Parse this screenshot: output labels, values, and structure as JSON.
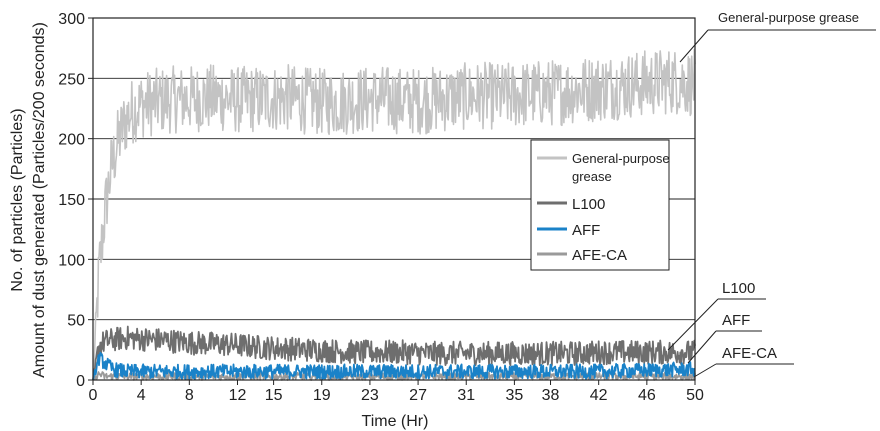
{
  "chart_data": {
    "type": "line",
    "title": "",
    "xlabel": "Time (Hr)",
    "ylabel_line1": "No. of particles (Particles)",
    "ylabel_line2": "Amount of dust generated (Particles/200 seconds)",
    "xlim": [
      0,
      50
    ],
    "ylim": [
      0,
      300
    ],
    "x_ticks": [
      0,
      4,
      8,
      12,
      15,
      19,
      23,
      27,
      31,
      35,
      38,
      42,
      46,
      50
    ],
    "y_ticks": [
      0,
      50,
      100,
      150,
      200,
      250,
      300
    ],
    "grid": "horizontal",
    "legend": {
      "placement": "center-right",
      "entries": [
        {
          "line1": "General-purpose",
          "line2": "grease"
        },
        {
          "line1": "L100"
        },
        {
          "line1": "AFF"
        },
        {
          "line1": "AFE-CA"
        }
      ]
    },
    "annotations": [
      {
        "text": "General-purpose grease",
        "series": "General-purpose grease"
      },
      {
        "text": "L100",
        "series": "L100"
      },
      {
        "text": "AFF",
        "series": "AFF"
      },
      {
        "text": "AFE-CA",
        "series": "AFE-CA"
      }
    ],
    "series": [
      {
        "name": "General-purpose grease",
        "color": "#c3c3c3",
        "x": [
          0,
          0.5,
          1,
          1.5,
          2,
          2.5,
          3,
          3.5,
          4,
          5,
          6,
          8,
          10,
          12,
          14,
          16,
          18,
          20,
          22,
          24,
          26,
          28,
          30,
          32,
          34,
          36,
          38,
          40,
          42,
          44,
          46,
          48,
          50
        ],
        "y": [
          0,
          90,
          140,
          175,
          195,
          210,
          220,
          225,
          228,
          230,
          232,
          233,
          234,
          232,
          233,
          234,
          231,
          230,
          232,
          233,
          231,
          232,
          234,
          236,
          235,
          237,
          238,
          240,
          242,
          244,
          246,
          248,
          246
        ],
        "noise": 28
      },
      {
        "name": "L100",
        "color": "#6e6e6e",
        "x": [
          0,
          0.5,
          1,
          2,
          3,
          4,
          6,
          8,
          10,
          12,
          14,
          16,
          18,
          20,
          22,
          24,
          26,
          28,
          30,
          32,
          34,
          36,
          38,
          40,
          42,
          44,
          46,
          48,
          50
        ],
        "y": [
          0,
          28,
          32,
          34,
          35,
          34,
          33,
          31,
          30,
          29,
          27,
          26,
          25,
          24,
          23,
          23,
          23,
          22,
          22,
          22,
          22,
          22,
          22,
          22,
          23,
          23,
          23,
          23,
          23
        ],
        "noise": 10
      },
      {
        "name": "AFF",
        "color": "#1a82c8",
        "x": [
          0,
          0.5,
          1,
          1.5,
          2,
          3,
          4,
          6,
          8,
          10,
          12,
          15,
          19,
          23,
          27,
          31,
          35,
          38,
          42,
          46,
          50
        ],
        "y": [
          0,
          18,
          14,
          10,
          8,
          7,
          7,
          7,
          7,
          7,
          7,
          7,
          7,
          7,
          7,
          7,
          7,
          7,
          7,
          8,
          9
        ],
        "noise": 6
      },
      {
        "name": "AFE-CA",
        "color": "#9a9a9a",
        "x": [
          0,
          0.5,
          1,
          2,
          4,
          8,
          12,
          15,
          19,
          23,
          27,
          31,
          35,
          38,
          42,
          46,
          50
        ],
        "y": [
          0,
          5,
          3,
          3,
          3,
          3,
          3,
          3,
          3,
          3,
          3,
          3,
          3,
          3,
          3,
          3,
          3
        ],
        "noise": 3
      }
    ]
  }
}
